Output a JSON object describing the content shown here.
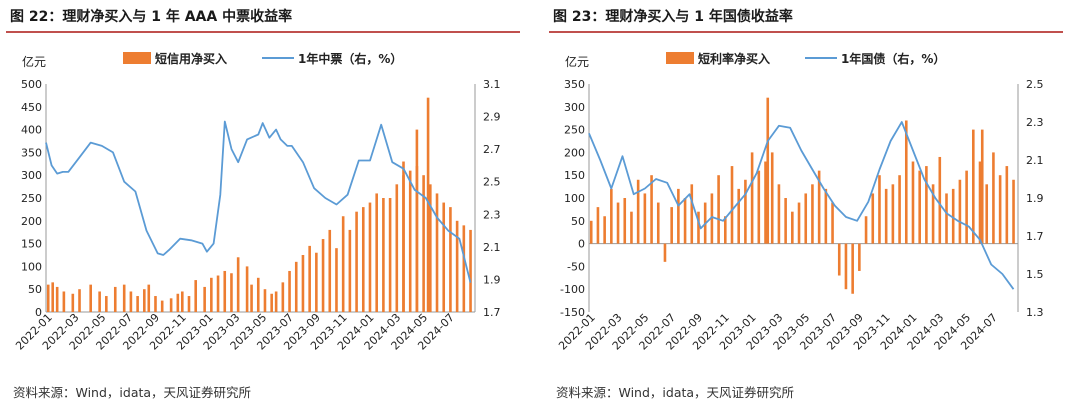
{
  "colors": {
    "bar": "#ED7D31",
    "line": "#5B9BD5",
    "title_rule": "#C0504D"
  },
  "figures": [
    {
      "title": "图 22：理财净买入与 1 年 AAA 中票收益率",
      "source": "资料来源：Wind，idata，天风证券研究所"
    },
    {
      "title": "图 23：理财净买入与 1 年国债收益率",
      "source": "资料来源：Wind，idata，天风证券研究所"
    }
  ],
  "chart_data": [
    {
      "type": "bar",
      "combo": "bar + line (secondary axis)",
      "left_unit": "亿元",
      "ylim": [
        0,
        500
      ],
      "y_ticks": [
        0,
        50,
        100,
        150,
        200,
        250,
        300,
        350,
        400,
        450,
        500
      ],
      "y2lim": [
        1.7,
        3.1
      ],
      "y2_ticks": [
        1.7,
        1.9,
        2.1,
        2.3,
        2.5,
        2.7,
        2.9,
        3.1
      ],
      "x_ticks": [
        "2022-01",
        "2022-03",
        "2022-05",
        "2022-07",
        "2022-09",
        "2022-11",
        "2023-01",
        "2023-03",
        "2023-05",
        "2023-07",
        "2023-09",
        "2023-11",
        "2024-01",
        "2024-03",
        "2024-05",
        "2024-07"
      ],
      "x_range_months": [
        0,
        19.2
      ],
      "grid": false,
      "legend_position": "top",
      "series": [
        {
          "name": "短信用净买入",
          "type": "bar",
          "axis": "left",
          "x": [
            0.1,
            0.3,
            0.5,
            0.8,
            1.2,
            1.5,
            2,
            2.4,
            2.7,
            3.1,
            3.5,
            3.8,
            4.1,
            4.4,
            4.6,
            4.9,
            5.2,
            5.6,
            5.9,
            6.1,
            6.4,
            6.7,
            7.1,
            7.4,
            7.7,
            8,
            8.3,
            8.6,
            9,
            9.2,
            9.5,
            9.8,
            10.1,
            10.3,
            10.6,
            10.9,
            11.2,
            11.5,
            11.8,
            12.1,
            12.4,
            12.7,
            13,
            13.3,
            13.6,
            13.9,
            14.2,
            14.5,
            14.8,
            15.1,
            15.4,
            15.7,
            16,
            16.3,
            16.6,
            16.9,
            17.2,
            17.5,
            17.8,
            18.1,
            18.4,
            18.7,
            19
          ],
          "values": [
            60,
            65,
            55,
            45,
            40,
            50,
            60,
            45,
            35,
            55,
            60,
            45,
            35,
            50,
            60,
            35,
            25,
            30,
            40,
            45,
            35,
            70,
            55,
            75,
            80,
            90,
            85,
            120,
            100,
            60,
            75,
            50,
            40,
            45,
            65,
            90,
            110,
            125,
            145,
            130,
            160,
            180,
            140,
            210,
            180,
            220,
            230,
            240,
            260,
            250,
            250,
            280,
            300,
            310,
            320,
            300,
            280,
            260,
            240,
            230,
            200,
            190,
            180
          ],
          "spikes": [
            {
              "x": 17.1,
              "value": 470
            },
            {
              "x": 16.6,
              "value": 400
            },
            {
              "x": 16.0,
              "value": 330
            }
          ]
        },
        {
          "name": "1年中票（右，%）",
          "type": "line",
          "axis": "right",
          "x": [
            0,
            0.25,
            0.5,
            0.75,
            1,
            1.5,
            2,
            2.5,
            3,
            3.5,
            4,
            4.5,
            5,
            5.25,
            5.5,
            6,
            6.5,
            7,
            7.2,
            7.5,
            7.8,
            8,
            8.3,
            8.6,
            9,
            9.5,
            9.7,
            10,
            10.3,
            10.5,
            10.8,
            11,
            11.5,
            12,
            12.5,
            13,
            13.5,
            14,
            14.5,
            15,
            15.5,
            16,
            16.5,
            17,
            17.5,
            18,
            18.5,
            19
          ],
          "values": [
            2.74,
            2.6,
            2.55,
            2.56,
            2.56,
            2.65,
            2.74,
            2.72,
            2.68,
            2.5,
            2.44,
            2.2,
            2.06,
            2.05,
            2.08,
            2.15,
            2.14,
            2.12,
            2.07,
            2.12,
            2.42,
            2.87,
            2.7,
            2.62,
            2.76,
            2.79,
            2.86,
            2.77,
            2.82,
            2.76,
            2.72,
            2.72,
            2.62,
            2.46,
            2.4,
            2.36,
            2.42,
            2.63,
            2.63,
            2.85,
            2.62,
            2.58,
            2.45,
            2.4,
            2.28,
            2.2,
            2.15,
            1.88
          ]
        }
      ]
    },
    {
      "type": "bar",
      "combo": "bar + line (secondary axis)",
      "left_unit": "亿元",
      "ylim": [
        -150,
        350
      ],
      "y_ticks": [
        -150,
        -100,
        -50,
        0,
        50,
        100,
        150,
        200,
        250,
        300,
        350
      ],
      "y2lim": [
        1.3,
        2.5
      ],
      "y2_ticks": [
        1.3,
        1.5,
        1.7,
        1.9,
        2.1,
        2.3,
        2.5
      ],
      "x_ticks": [
        "2022-01",
        "2022-03",
        "2022-05",
        "2022-07",
        "2022-09",
        "2022-11",
        "2023-01",
        "2023-03",
        "2023-05",
        "2023-07",
        "2023-09",
        "2023-11",
        "2024-01",
        "2024-03",
        "2024-05",
        "2024-07"
      ],
      "x_range_months": [
        0,
        19.2
      ],
      "grid": false,
      "legend_position": "top",
      "series": [
        {
          "name": "短利率净买入",
          "type": "bar",
          "axis": "left",
          "x": [
            0.1,
            0.4,
            0.7,
            1,
            1.3,
            1.6,
            1.9,
            2.2,
            2.5,
            2.8,
            3.1,
            3.4,
            3.7,
            4,
            4.3,
            4.6,
            4.9,
            5.2,
            5.5,
            5.8,
            6.1,
            6.4,
            6.7,
            7,
            7.3,
            7.6,
            7.9,
            8.2,
            8.5,
            8.8,
            9.1,
            9.4,
            9.7,
            10,
            10.3,
            10.6,
            10.9,
            11.2,
            11.5,
            11.8,
            12.1,
            12.4,
            12.7,
            13,
            13.3,
            13.6,
            13.9,
            14.2,
            14.5,
            14.8,
            15.1,
            15.4,
            15.7,
            16,
            16.3,
            16.6,
            16.9,
            17.2,
            17.5,
            17.8,
            18.1,
            18.4,
            18.7,
            19
          ],
          "values": [
            50,
            80,
            60,
            120,
            90,
            100,
            70,
            140,
            110,
            150,
            90,
            -40,
            80,
            120,
            100,
            130,
            70,
            90,
            110,
            150,
            60,
            170,
            120,
            140,
            200,
            160,
            180,
            200,
            130,
            100,
            70,
            90,
            110,
            130,
            160,
            120,
            90,
            -70,
            -100,
            -110,
            -60,
            60,
            110,
            150,
            120,
            130,
            150,
            270,
            180,
            160,
            170,
            130,
            190,
            110,
            120,
            140,
            160,
            250,
            180,
            130,
            200,
            150,
            170,
            140
          ],
          "spikes": [
            {
              "x": 8.0,
              "value": 320
            },
            {
              "x": 17.6,
              "value": 250
            }
          ]
        },
        {
          "name": "1年国债（右，%）",
          "type": "line",
          "axis": "right",
          "x": [
            0,
            0.5,
            1,
            1.5,
            2,
            2.5,
            3,
            3.5,
            4,
            4.5,
            5,
            5.5,
            6,
            6.5,
            7,
            7.5,
            8,
            8.5,
            9,
            9.5,
            10,
            10.5,
            11,
            11.5,
            12,
            12.5,
            13,
            13.5,
            14,
            14.5,
            15,
            15.5,
            16,
            16.5,
            17,
            17.5,
            18,
            18.5,
            19
          ],
          "values": [
            2.24,
            2.1,
            1.95,
            2.12,
            1.92,
            1.95,
            2.0,
            1.98,
            1.86,
            1.92,
            1.74,
            1.8,
            1.78,
            1.85,
            1.92,
            2.03,
            2.2,
            2.28,
            2.27,
            2.15,
            2.05,
            1.95,
            1.86,
            1.8,
            1.78,
            1.88,
            2.05,
            2.2,
            2.3,
            2.15,
            2.0,
            1.9,
            1.82,
            1.78,
            1.75,
            1.68,
            1.55,
            1.5,
            1.42
          ]
        }
      ]
    }
  ]
}
